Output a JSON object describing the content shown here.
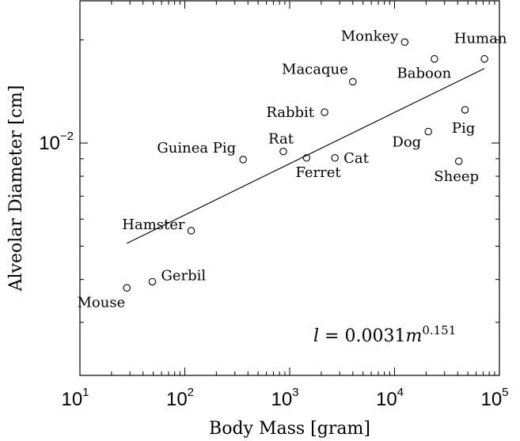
{
  "chart_data": {
    "type": "scatter",
    "title": "",
    "xlabel": "Body Mass [gram]",
    "ylabel": "Alveolar Diameter [cm]",
    "x_scale": "log",
    "y_scale": "log",
    "xlim": [
      10,
      100000
    ],
    "ylim": [
      0.0021,
      0.026
    ],
    "x_ticks": [
      {
        "value": 10,
        "base": "10",
        "exp": "1"
      },
      {
        "value": 100,
        "base": "10",
        "exp": "2"
      },
      {
        "value": 1000,
        "base": "10",
        "exp": "3"
      },
      {
        "value": 10000,
        "base": "10",
        "exp": "4"
      },
      {
        "value": 100000,
        "base": "10",
        "exp": "5"
      }
    ],
    "y_ticks": [
      {
        "value": 0.01,
        "base": "10",
        "exp": "−2"
      }
    ],
    "grid": false,
    "points": [
      {
        "name": "Mouse",
        "x": 28,
        "y": 0.00378
      },
      {
        "name": "Gerbil",
        "x": 49,
        "y": 0.00394
      },
      {
        "name": "Hamster",
        "x": 115,
        "y": 0.00555
      },
      {
        "name": "Guinea Pig",
        "x": 360,
        "y": 0.00895
      },
      {
        "name": "Rat",
        "x": 870,
        "y": 0.00945
      },
      {
        "name": "Ferret",
        "x": 1450,
        "y": 0.00905
      },
      {
        "name": "Cat",
        "x": 2700,
        "y": 0.00905
      },
      {
        "name": "Rabbit",
        "x": 2150,
        "y": 0.0123
      },
      {
        "name": "Macaque",
        "x": 4000,
        "y": 0.0151
      },
      {
        "name": "Monkey",
        "x": 12500,
        "y": 0.0197
      },
      {
        "name": "Baboon",
        "x": 24000,
        "y": 0.0176
      },
      {
        "name": "Human",
        "x": 72000,
        "y": 0.0176
      },
      {
        "name": "Dog",
        "x": 21000,
        "y": 0.0108
      },
      {
        "name": "Pig",
        "x": 47000,
        "y": 0.0125
      },
      {
        "name": "Sheep",
        "x": 41000,
        "y": 0.00885
      }
    ],
    "fit": {
      "x": [
        28,
        72000
      ],
      "y": [
        0.0051,
        0.0165
      ]
    },
    "annotation": {
      "lhs": "l",
      "eq": " = 0.0031",
      "var": "m",
      "exp": "0.151"
    }
  }
}
